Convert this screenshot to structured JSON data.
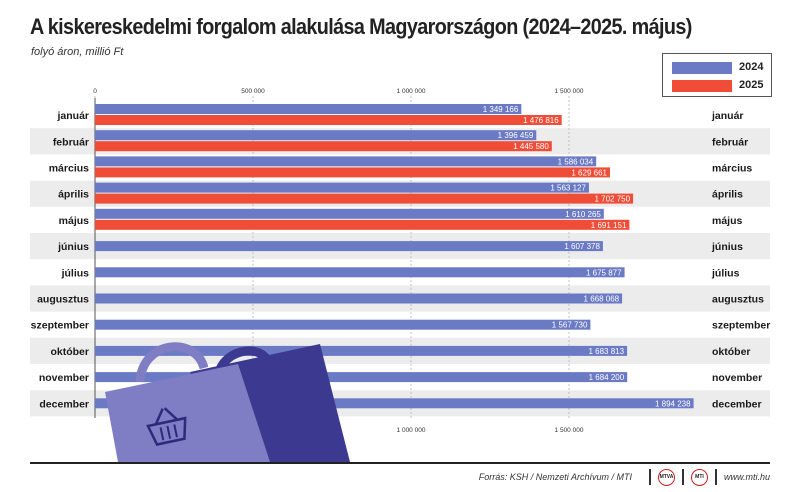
{
  "header": {
    "title": "A kiskereskedelmi forgalom alakulása Magyarországon (2024–2025. május)",
    "subtitle": "folyó áron, millió Ft"
  },
  "footer": {
    "source": "Forrás: KSH / Nemzeti Archívum / MTI",
    "logo1": "MTVA",
    "logo2": "MTI",
    "website": "www.mti.hu"
  },
  "colors": {
    "series_2024": "#6b7ac4",
    "series_2025": "#f04d38",
    "band": "#ececec",
    "bag_front": "#7f7dc4",
    "bag_back": "#3c3a90"
  },
  "chart_data": {
    "type": "bar",
    "orientation": "horizontal",
    "title": "A kiskereskedelmi forgalom alakulása Magyarországon (2024–2025. május)",
    "subtitle": "folyó áron, millió Ft",
    "categories": [
      "január",
      "február",
      "március",
      "április",
      "május",
      "június",
      "július",
      "augusztus",
      "szeptember",
      "október",
      "november",
      "december"
    ],
    "series": [
      {
        "name": "2024",
        "values": [
          1349166,
          1396459,
          1586034,
          1563127,
          1610265,
          1607378,
          1675877,
          1668068,
          1567730,
          1683813,
          1684200,
          1894238
        ]
      },
      {
        "name": "2025",
        "values": [
          1476816,
          1445580,
          1629661,
          1702750,
          1691151,
          null,
          null,
          null,
          null,
          null,
          null,
          null
        ]
      }
    ],
    "value_labels": {
      "2024": [
        "1 349 166",
        "1 396 459",
        "1 586 034",
        "1 563 127",
        "1 610 265",
        "1 607 378",
        "1 675 877",
        "1 668 068",
        "1 567 730",
        "1 683 813",
        "1 684 200",
        "1 894 238"
      ],
      "2025": [
        "1 476 816",
        "1 445 580",
        "1 629 661",
        "1 702 750",
        "1 691 151"
      ]
    },
    "xlim": [
      0,
      1900000
    ],
    "ticks_top": [
      {
        "value": 0,
        "label": "0"
      },
      {
        "value": 500000,
        "label": "500 000"
      },
      {
        "value": 1000000,
        "label": "1 000 000"
      },
      {
        "value": 1500000,
        "label": "1 500 000"
      }
    ],
    "ticks_bottom": [
      {
        "value": 1000000,
        "label": "1 000 000"
      },
      {
        "value": 1500000,
        "label": "1 500 000"
      }
    ],
    "legend": {
      "position": "top-right",
      "entries": [
        "2024",
        "2025"
      ]
    },
    "grid": true
  }
}
